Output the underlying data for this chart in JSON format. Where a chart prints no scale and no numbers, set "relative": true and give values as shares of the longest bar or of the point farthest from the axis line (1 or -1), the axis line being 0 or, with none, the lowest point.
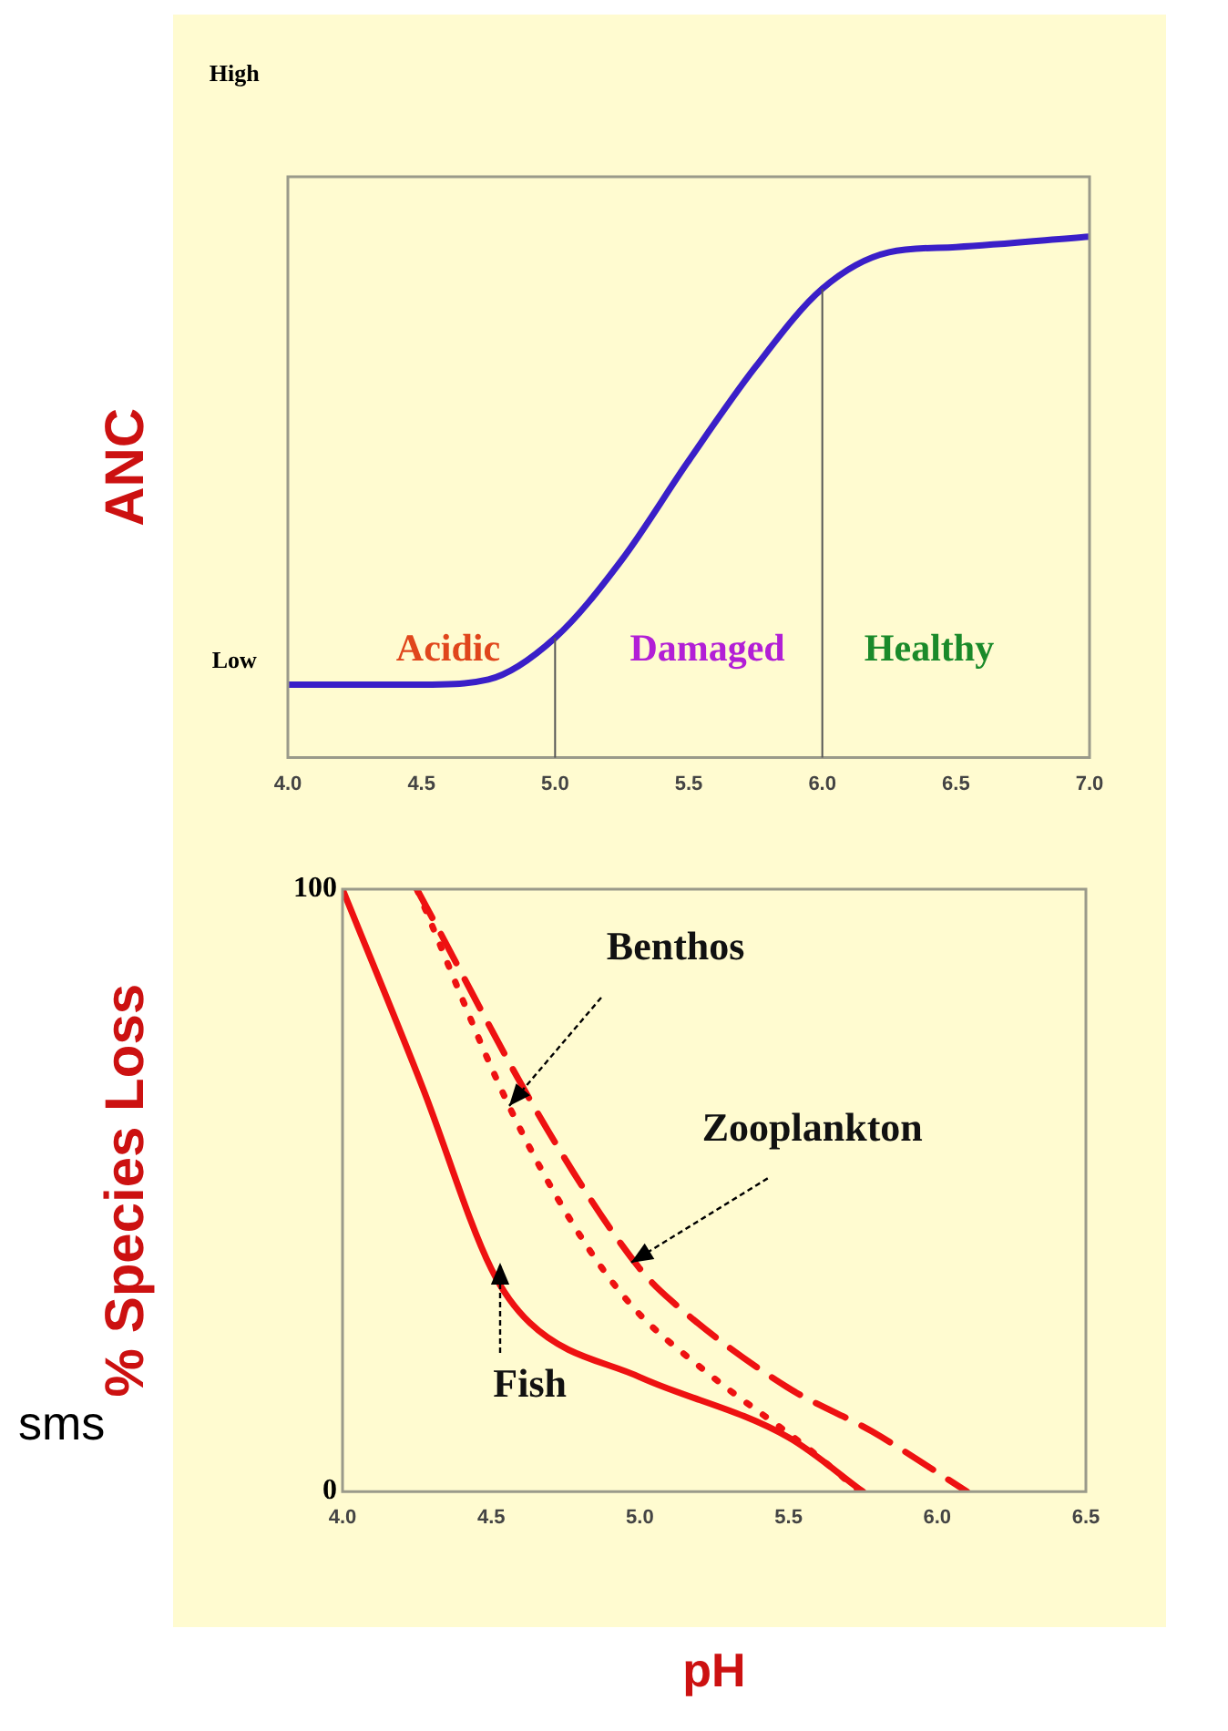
{
  "chart_data": [
    {
      "type": "line",
      "ylabel": "ANC",
      "relative": true,
      "xlim": [
        4,
        7
      ],
      "xticks": [
        {
          "value": 4,
          "label": "4.0"
        },
        {
          "value": 4.5,
          "label": "4.5"
        },
        {
          "value": 5,
          "label": "5.0"
        },
        {
          "value": 5.5,
          "label": "5.5"
        },
        {
          "value": 6,
          "label": "6.0"
        },
        {
          "value": 6.5,
          "label": "6.5"
        },
        {
          "value": 7,
          "label": "7.0"
        }
      ],
      "series": [
        {
          "color": "#3a1fc8",
          "x": [
            4.0,
            4.5,
            4.75,
            5.0,
            5.25,
            5.5,
            5.75,
            6.0,
            6.25,
            6.5,
            7.0
          ],
          "values": [
            0.14,
            0.14,
            0.15,
            0.23,
            0.38,
            0.57,
            0.75,
            0.9,
            0.97,
            0.98,
            1.0
          ]
        }
      ],
      "ref_lines": [
        {
          "axis": "x",
          "value": 5,
          "color": "#555555"
        },
        {
          "axis": "x",
          "value": 6,
          "color": "#555555"
        }
      ],
      "annotations": [
        "High",
        "Low",
        "Acidic",
        "Damaged",
        "Healthy"
      ],
      "grid": false,
      "legend": false,
      "marker": "none"
    },
    {
      "type": "line",
      "xlabel": "pH",
      "ylabel": "% Species Loss",
      "xlim": [
        4,
        6.5
      ],
      "ylim": [
        0,
        100
      ],
      "xticks": [
        {
          "value": 4,
          "label": "4.0"
        },
        {
          "value": 4.5,
          "label": "4.5"
        },
        {
          "value": 5,
          "label": "5.0"
        },
        {
          "value": 5.5,
          "label": "5.5"
        },
        {
          "value": 6,
          "label": "6.0"
        },
        {
          "value": 6.5,
          "label": "6.5"
        }
      ],
      "yticks": [
        0,
        100
      ],
      "series": [
        {
          "color": "#ee1111",
          "line_style": "solid",
          "x": [
            4.0,
            4.27,
            4.5,
            4.63,
            5.0,
            5.5,
            5.75
          ],
          "values": [
            100,
            67,
            37,
            28,
            19,
            9,
            0
          ]
        },
        {
          "color": "#ee1111",
          "line_style": "dotted",
          "x": [
            4.25,
            4.56,
            4.78,
            4.97,
            5.22,
            5.57,
            5.74
          ],
          "values": [
            100,
            64,
            44,
            31,
            20,
            7,
            0
          ]
        },
        {
          "color": "#ee1111",
          "line_style": "dashed",
          "x": [
            4.25,
            4.69,
            5.0,
            5.11,
            5.49,
            5.78,
            6.1
          ],
          "values": [
            100,
            60,
            37,
            31.5,
            17.5,
            10,
            0
          ]
        }
      ],
      "annotations": [
        {
          "text": "Fish",
          "x": 4.53,
          "y": 38
        },
        {
          "text": "Benthos",
          "x": 4.56,
          "y": 64
        },
        {
          "text": "Zooplankton",
          "x": 4.97,
          "y": 38
        },
        "sms"
      ],
      "grid": false,
      "legend": false,
      "marker": "none"
    }
  ]
}
